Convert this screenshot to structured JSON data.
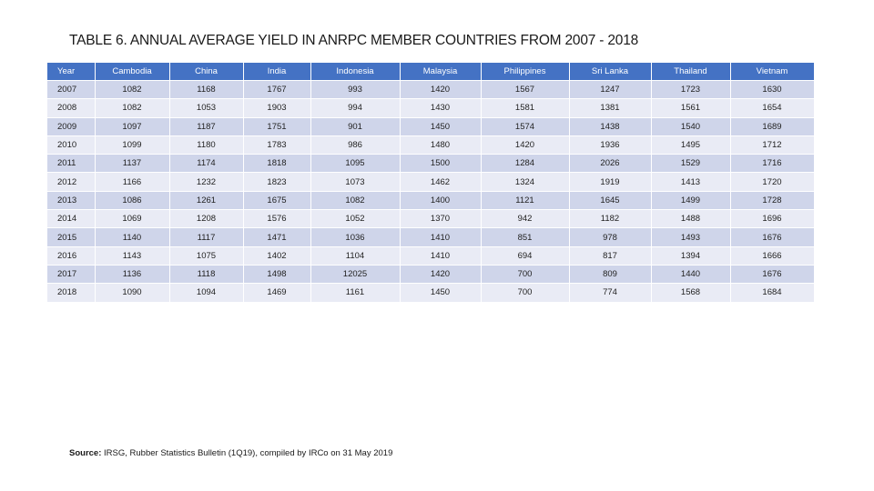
{
  "title": "TABLE 6. ANNUAL AVERAGE YIELD IN ANRPC MEMBER COUNTRIES FROM 2007 - 2018",
  "table": {
    "headers": [
      "Year",
      "Cambodia",
      "China",
      "India",
      "Indonesia",
      "Malaysia",
      "Philippines",
      "Sri Lanka",
      "Thailand",
      "Vietnam"
    ],
    "rows": [
      [
        "2007",
        "1082",
        "1168",
        "1767",
        "993",
        "1420",
        "1567",
        "1247",
        "1723",
        "1630"
      ],
      [
        "2008",
        "1082",
        "1053",
        "1903",
        "994",
        "1430",
        "1581",
        "1381",
        "1561",
        "1654"
      ],
      [
        "2009",
        "1097",
        "1187",
        "1751",
        "901",
        "1450",
        "1574",
        "1438",
        "1540",
        "1689"
      ],
      [
        "2010",
        "1099",
        "1180",
        "1783",
        "986",
        "1480",
        "1420",
        "1936",
        "1495",
        "1712"
      ],
      [
        "2011",
        "1137",
        "1174",
        "1818",
        "1095",
        "1500",
        "1284",
        "2026",
        "1529",
        "1716"
      ],
      [
        "2012",
        "1166",
        "1232",
        "1823",
        "1073",
        "1462",
        "1324",
        "1919",
        "1413",
        "1720"
      ],
      [
        "2013",
        "1086",
        "1261",
        "1675",
        "1082",
        "1400",
        "1121",
        "1645",
        "1499",
        "1728"
      ],
      [
        "2014",
        "1069",
        "1208",
        "1576",
        "1052",
        "1370",
        "942",
        "1182",
        "1488",
        "1696"
      ],
      [
        "2015",
        "1140",
        "1117",
        "1471",
        "1036",
        "1410",
        "851",
        "978",
        "1493",
        "1676"
      ],
      [
        "2016",
        "1143",
        "1075",
        "1402",
        "1104",
        "1410",
        "694",
        "817",
        "1394",
        "1666"
      ],
      [
        "2017",
        "1136",
        "1118",
        "1498",
        "12025",
        "1420",
        "700",
        "809",
        "1440",
        "1676"
      ],
      [
        "2018",
        "1090",
        "1094",
        "1469",
        "1161",
        "1450",
        "700",
        "774",
        "1568",
        "1684"
      ]
    ]
  },
  "source": {
    "label": "Source:",
    "text": " IRSG, Rubber Statistics Bulletin (1Q19), compiled by IRCo on 31 May 2019"
  },
  "colors": {
    "header_bg": "#4472c4",
    "row_odd": "#cfd5ea",
    "row_even": "#e9ebf5"
  }
}
